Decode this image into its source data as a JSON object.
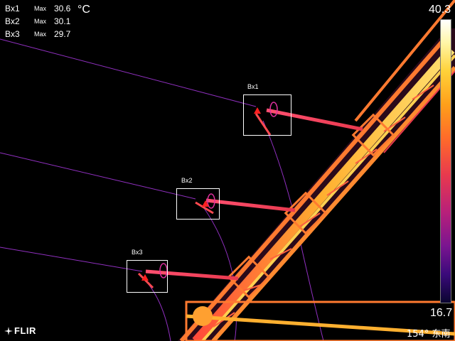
{
  "measurements": [
    {
      "label": "Bx1",
      "type": "Max",
      "value": "30.6"
    },
    {
      "label": "Bx2",
      "type": "Max",
      "value": "30.1"
    },
    {
      "label": "Bx3",
      "type": "Max",
      "value": "29.7"
    }
  ],
  "unit": "°C",
  "boxes": [
    {
      "label": "Bx1"
    },
    {
      "label": "Bx2"
    },
    {
      "label": "Bx3"
    }
  ],
  "scale": {
    "max": "40.3",
    "min": "16.7",
    "palette": "iron"
  },
  "logo": {
    "text": "FLIR"
  },
  "compass": {
    "text": "154° 东南"
  },
  "colors": {
    "background": "#000000",
    "hot": "#ffffff",
    "warm": "#ff9f1a",
    "mid": "#e8394e",
    "cool": "#7a1590",
    "cold": "#0a0530",
    "box_outline": "#ffffff",
    "marker": "#ff2020"
  }
}
